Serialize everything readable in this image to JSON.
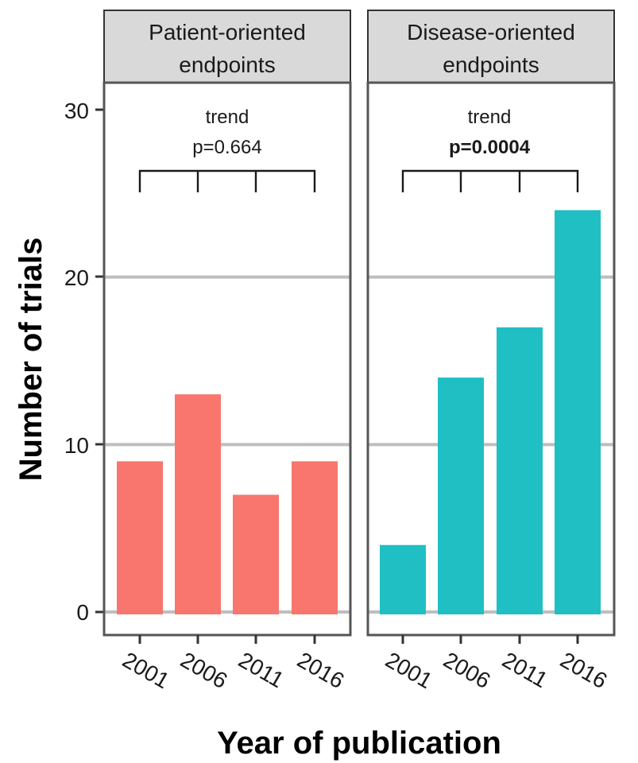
{
  "chart_data": {
    "type": "bar",
    "ylabel": "Number of trials",
    "xlabel": "Year of publication",
    "ylim": [
      0,
      30
    ],
    "yticks": [
      "0",
      "10",
      "20",
      "30"
    ],
    "grid": "horizontal major",
    "panels": [
      {
        "title_line1": "Patient-oriented",
        "title_line2": "endpoints",
        "categories": [
          "2001",
          "2006",
          "2011",
          "2016"
        ],
        "values": [
          9,
          13,
          7,
          9
        ],
        "color": "#F8766D",
        "annotation_line1": "trend",
        "annotation_line2": "p=0.664",
        "annotation_bold": false
      },
      {
        "title_line1": "Disease-oriented",
        "title_line2": "endpoints",
        "categories": [
          "2001",
          "2006",
          "2011",
          "2016"
        ],
        "values": [
          4,
          14,
          17,
          24
        ],
        "color": "#1FBFC3",
        "annotation_line1": "trend",
        "annotation_line2": "p=0.0004",
        "annotation_bold": true
      }
    ]
  }
}
